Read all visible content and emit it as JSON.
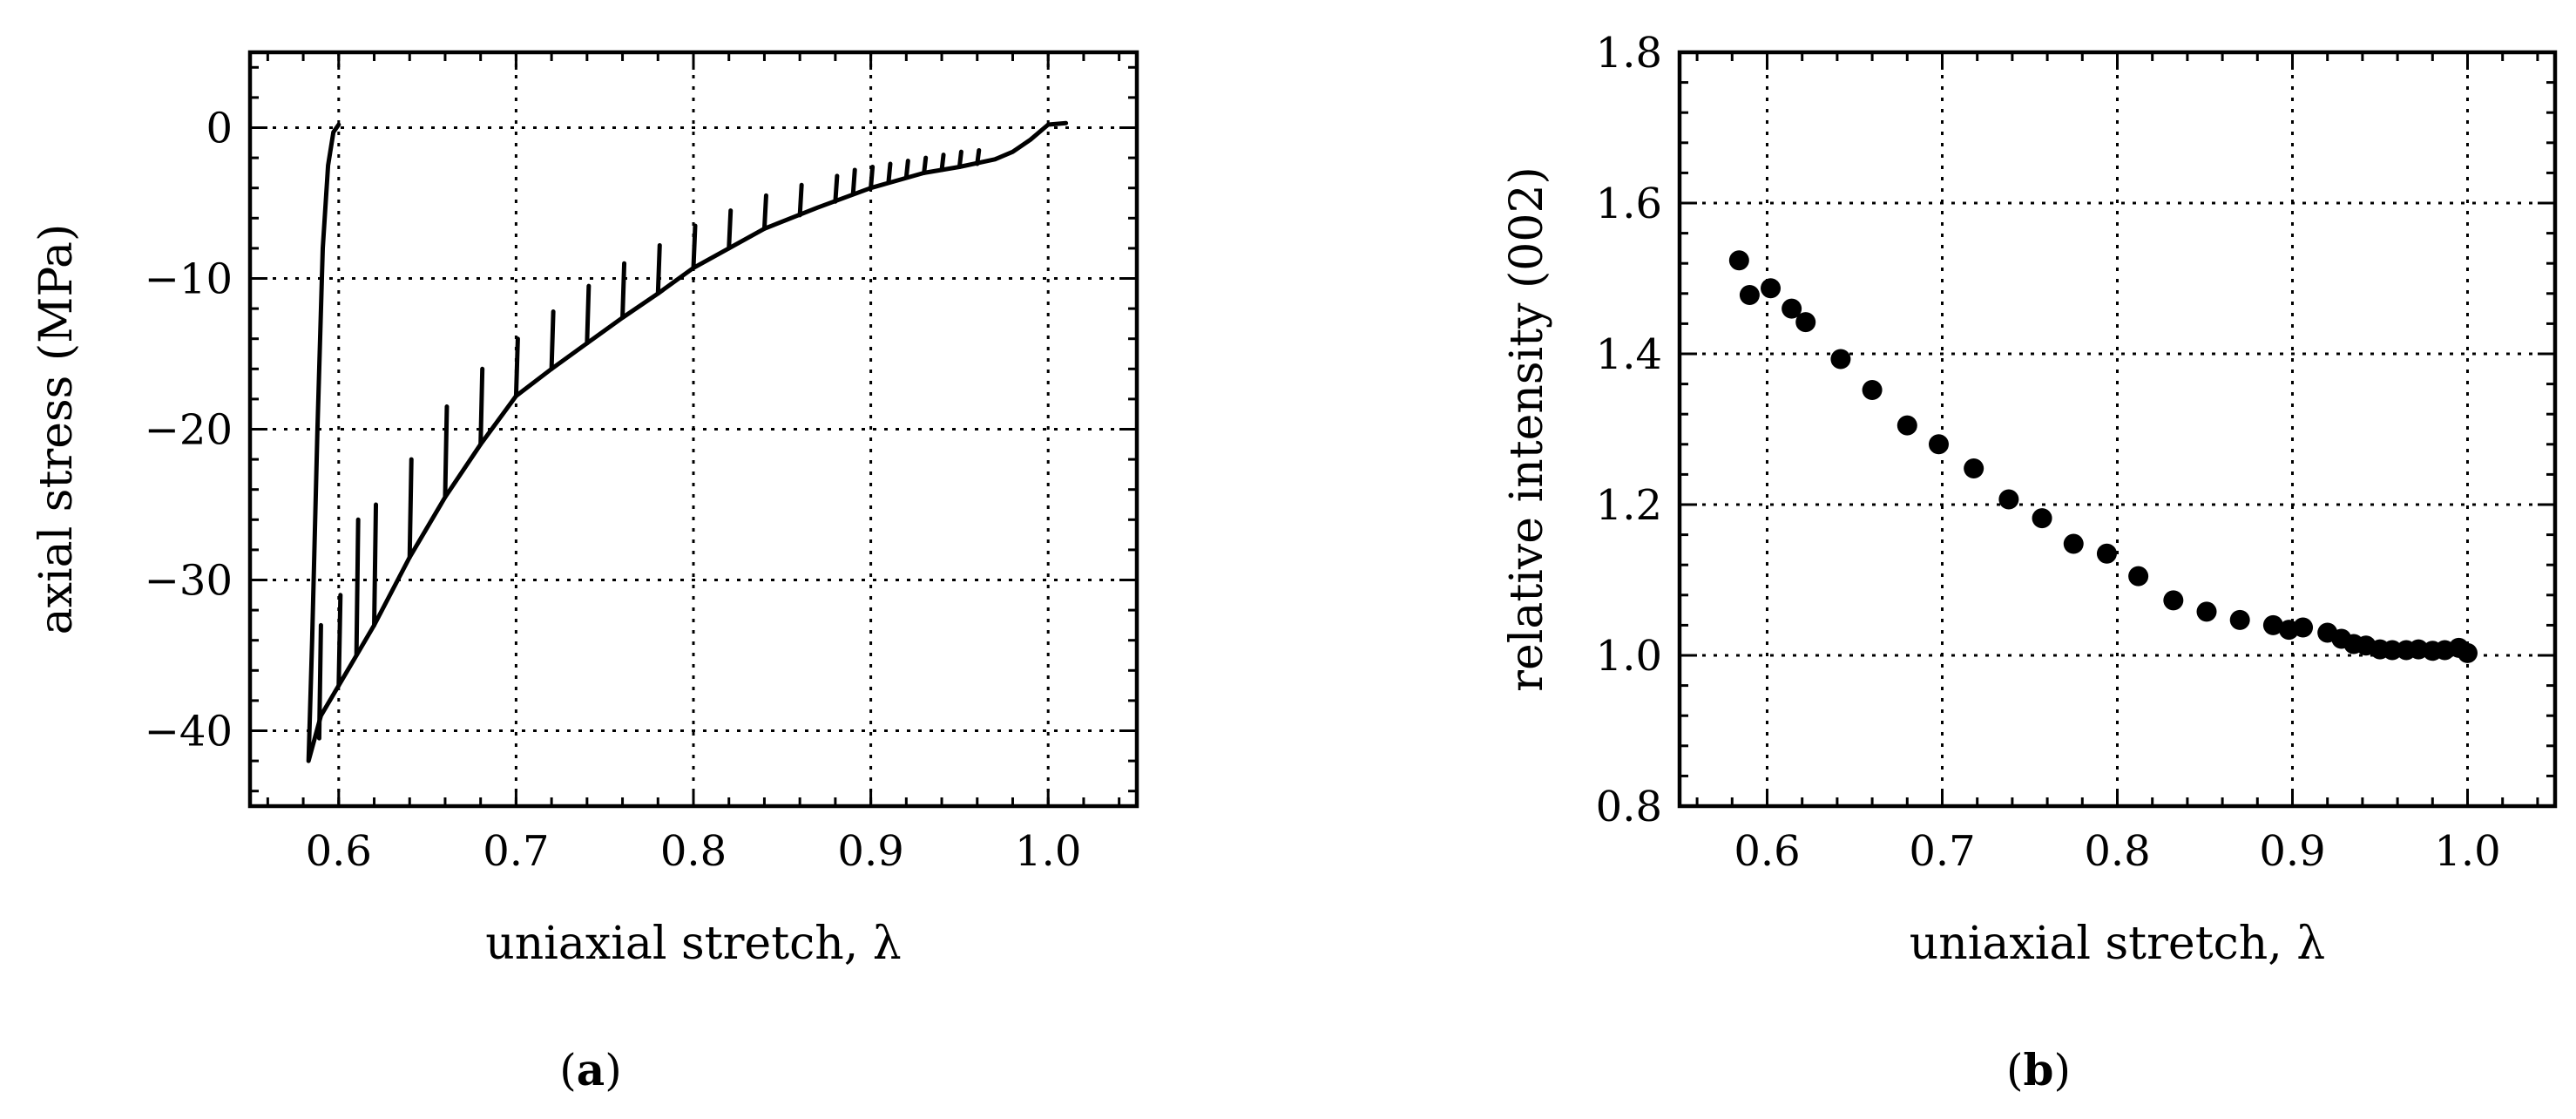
{
  "chart_data": [
    {
      "type": "line",
      "xlabel": "uniaxial stretch, λ",
      "ylabel": "axial stress (MPa)",
      "xlim": [
        0.55,
        1.05
      ],
      "ylim": [
        -45,
        5
      ],
      "xticks": [
        0.6,
        0.7,
        0.8,
        0.9,
        1.0
      ],
      "xtick_labels": [
        "0.6",
        "0.7",
        "0.8",
        "0.9",
        "1.0"
      ],
      "yticks": [
        0,
        -10,
        -20,
        -30,
        -40
      ],
      "ytick_labels": [
        "0",
        "−10",
        "−20",
        "−30",
        "−40"
      ],
      "grid": true,
      "caption": {
        "open": "(",
        "letter": "a",
        "close": ")"
      },
      "series": [
        {
          "x": [
            1.01,
            1.0,
            0.99,
            0.98,
            0.97,
            0.95,
            0.93,
            0.9,
            0.87,
            0.84,
            0.82,
            0.8,
            0.78,
            0.76,
            0.74,
            0.72,
            0.7,
            0.68,
            0.66,
            0.64,
            0.62,
            0.61,
            0.6,
            0.59,
            0.583,
            0.585,
            0.588,
            0.591,
            0.594,
            0.597,
            0.6
          ],
          "y": [
            0.3,
            0.2,
            -0.8,
            -1.6,
            -2.1,
            -2.6,
            -3.0,
            -4.0,
            -5.3,
            -6.7,
            -8.0,
            -9.3,
            -11.0,
            -12.6,
            -14.3,
            -16.0,
            -17.8,
            -21.0,
            -24.5,
            -28.5,
            -33.0,
            -35.0,
            -37.0,
            -39.0,
            -42.0,
            -34.0,
            -20.0,
            -8.0,
            -2.5,
            -0.3,
            0.2
          ]
        }
      ],
      "relaxation_spikes": [
        {
          "x": 0.589,
          "y_low": -40.5,
          "y_high": -33.0
        },
        {
          "x": 0.6,
          "y_low": -37.0,
          "y_high": -31.0
        },
        {
          "x": 0.61,
          "y_low": -35.0,
          "y_high": -26.0
        },
        {
          "x": 0.62,
          "y_low": -33.0,
          "y_high": -25.0
        },
        {
          "x": 0.64,
          "y_low": -28.5,
          "y_high": -22.0
        },
        {
          "x": 0.66,
          "y_low": -24.5,
          "y_high": -18.5
        },
        {
          "x": 0.68,
          "y_low": -21.0,
          "y_high": -16.0
        },
        {
          "x": 0.7,
          "y_low": -17.8,
          "y_high": -14.0
        },
        {
          "x": 0.72,
          "y_low": -16.0,
          "y_high": -12.2
        },
        {
          "x": 0.74,
          "y_low": -14.3,
          "y_high": -10.5
        },
        {
          "x": 0.76,
          "y_low": -12.6,
          "y_high": -9.0
        },
        {
          "x": 0.78,
          "y_low": -11.0,
          "y_high": -7.8
        },
        {
          "x": 0.8,
          "y_low": -9.3,
          "y_high": -6.5
        },
        {
          "x": 0.82,
          "y_low": -8.0,
          "y_high": -5.5
        },
        {
          "x": 0.84,
          "y_low": -6.7,
          "y_high": -4.5
        },
        {
          "x": 0.86,
          "y_low": -5.8,
          "y_high": -3.8
        },
        {
          "x": 0.88,
          "y_low": -4.9,
          "y_high": -3.2
        },
        {
          "x": 0.89,
          "y_low": -4.4,
          "y_high": -2.8
        },
        {
          "x": 0.9,
          "y_low": -4.0,
          "y_high": -2.6
        },
        {
          "x": 0.91,
          "y_low": -3.6,
          "y_high": -2.4
        },
        {
          "x": 0.92,
          "y_low": -3.3,
          "y_high": -2.2
        },
        {
          "x": 0.93,
          "y_low": -3.0,
          "y_high": -2.0
        },
        {
          "x": 0.94,
          "y_low": -2.8,
          "y_high": -1.8
        },
        {
          "x": 0.95,
          "y_low": -2.6,
          "y_high": -1.6
        },
        {
          "x": 0.96,
          "y_low": -2.4,
          "y_high": -1.5
        }
      ]
    },
    {
      "type": "scatter",
      "xlabel": "uniaxial stretch, λ",
      "ylabel": "relative intensity (002)",
      "xlim": [
        0.55,
        1.05
      ],
      "ylim": [
        0.8,
        1.8
      ],
      "xticks": [
        0.6,
        0.7,
        0.8,
        0.9,
        1.0
      ],
      "xtick_labels": [
        "0.6",
        "0.7",
        "0.8",
        "0.9",
        "1.0"
      ],
      "yticks": [
        0.8,
        1.0,
        1.2,
        1.4,
        1.6,
        1.8
      ],
      "ytick_labels": [
        "0.8",
        "1.0",
        "1.2",
        "1.4",
        "1.6",
        "1.8"
      ],
      "grid": true,
      "caption": {
        "open": "(",
        "letter": "b",
        "close": ")"
      },
      "series": [
        {
          "x": [
            0.584,
            0.59,
            0.602,
            0.614,
            0.622,
            0.642,
            0.66,
            0.68,
            0.698,
            0.718,
            0.738,
            0.757,
            0.775,
            0.794,
            0.812,
            0.832,
            0.851,
            0.87,
            0.889,
            0.898,
            0.906,
            0.92,
            0.928,
            0.935,
            0.942,
            0.95,
            0.957,
            0.965,
            0.972,
            0.98,
            0.987,
            0.995,
            1.0
          ],
          "y": [
            1.524,
            1.478,
            1.487,
            1.46,
            1.442,
            1.393,
            1.352,
            1.305,
            1.28,
            1.248,
            1.207,
            1.182,
            1.148,
            1.135,
            1.105,
            1.073,
            1.058,
            1.047,
            1.04,
            1.034,
            1.037,
            1.03,
            1.022,
            1.015,
            1.013,
            1.008,
            1.007,
            1.007,
            1.008,
            1.006,
            1.007,
            1.01,
            1.003
          ]
        }
      ]
    }
  ]
}
